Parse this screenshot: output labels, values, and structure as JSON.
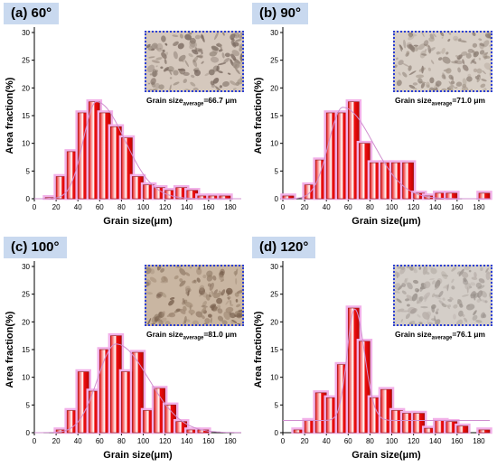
{
  "chart_data": [
    {
      "type": "bar",
      "panel_label": "(a) 60°",
      "xlabel": "Grain size(μm)",
      "ylabel": "Area fraction(%)",
      "xlim": [
        0,
        190
      ],
      "ylim": [
        0,
        30
      ],
      "xticks": [
        0,
        20,
        40,
        60,
        80,
        100,
        120,
        140,
        160,
        180
      ],
      "yticks": [
        0,
        5,
        10,
        15,
        20,
        25,
        30
      ],
      "bin_width": 10,
      "bin_centers": [
        15,
        25,
        35,
        45,
        55,
        65,
        75,
        85,
        95,
        105,
        115,
        125,
        135,
        145,
        155,
        165,
        175
      ],
      "values": [
        0.2,
        4,
        8.5,
        15.5,
        17.5,
        15.5,
        13,
        11,
        4,
        2.5,
        2,
        1.5,
        2,
        1.5,
        0.5,
        0.5,
        0.5
      ],
      "fit_curve": {
        "peak_x": 57,
        "peak_y": 17.5,
        "sigma_left": 12,
        "sigma_right": 26
      },
      "annotation": {
        "prefix": "Grain size",
        "subscript": "average",
        "value": "=66.7 μm"
      },
      "inset_colors": [
        "#d5c8bd",
        "#7a6a60",
        "#9a8c80"
      ]
    },
    {
      "type": "bar",
      "panel_label": "(b) 90°",
      "xlabel": "Grain size(μm)",
      "ylabel": "Area fraction(%)",
      "xlim": [
        0,
        190
      ],
      "ylim": [
        0,
        30
      ],
      "xticks": [
        0,
        20,
        40,
        60,
        80,
        100,
        120,
        140,
        160,
        180
      ],
      "yticks": [
        0,
        5,
        10,
        15,
        20,
        25,
        30
      ],
      "bin_width": 10,
      "bin_centers": [
        5,
        25,
        35,
        45,
        55,
        65,
        75,
        85,
        95,
        105,
        115,
        125,
        135,
        145,
        155,
        185
      ],
      "values": [
        0.5,
        2.5,
        7,
        15.5,
        15.5,
        17.5,
        10,
        6.5,
        6.5,
        6.5,
        6.5,
        1,
        0.5,
        1,
        1,
        1
      ],
      "fit_curve": {
        "peak_x": 55,
        "peak_y": 16.5,
        "sigma_left": 13,
        "sigma_right": 28
      },
      "annotation": {
        "prefix": "Grain size",
        "subscript": "average",
        "value": "=71.0 μm"
      },
      "inset_colors": [
        "#d8cfc6",
        "#8a7c72",
        "#a99c90"
      ]
    },
    {
      "type": "bar",
      "panel_label": "(c) 100°",
      "xlabel": "Grain size(μm)",
      "ylabel": "Area fraction(%)",
      "xlim": [
        0,
        190
      ],
      "ylim": [
        0,
        30
      ],
      "xticks": [
        0,
        20,
        40,
        60,
        80,
        100,
        120,
        140,
        160,
        180
      ],
      "yticks": [
        0,
        5,
        10,
        15,
        20,
        25,
        30
      ],
      "bin_width": 10,
      "bin_centers": [
        25,
        35,
        45,
        55,
        65,
        75,
        85,
        95,
        105,
        115,
        125,
        135,
        145,
        155,
        165
      ],
      "values": [
        0.5,
        4,
        11,
        7.5,
        15,
        17.5,
        11,
        14.5,
        4,
        8,
        5,
        2,
        0.5,
        0.5,
        0
      ],
      "fit_curve": {
        "peak_x": 75,
        "peak_y": 16,
        "sigma_left": 17,
        "sigma_right": 30
      },
      "annotation": {
        "prefix": "Grain size",
        "subscript": "average",
        "value": "=81.0 μm"
      },
      "inset_colors": [
        "#c9b6a2",
        "#7b6350",
        "#a08a75"
      ]
    },
    {
      "type": "bar",
      "panel_label": "(d) 120°",
      "xlabel": "Grain size(μm)",
      "ylabel": "Area fraction(%)",
      "xlim": [
        0,
        190
      ],
      "ylim": [
        0,
        30
      ],
      "xticks": [
        0,
        20,
        40,
        60,
        80,
        100,
        120,
        140,
        160,
        180
      ],
      "yticks": [
        0,
        5,
        10,
        15,
        20,
        25,
        30
      ],
      "bin_width": 10,
      "bin_centers": [
        15,
        25,
        35,
        45,
        55,
        65,
        75,
        85,
        95,
        105,
        115,
        125,
        135,
        145,
        155,
        165,
        185
      ],
      "values": [
        0.5,
        2.2,
        7.2,
        6.3,
        12.3,
        22.5,
        16.5,
        6.3,
        7.8,
        4,
        3.5,
        3.5,
        0.8,
        2.2,
        2,
        1.2,
        0.5
      ],
      "fit_curve": {
        "peak_x": 66,
        "peak_y": 22.3,
        "sigma_left": 7,
        "sigma_right": 9,
        "baseline": 2.2
      },
      "annotation": {
        "prefix": "Grain size",
        "subscript": "average",
        "value": "=76.1 μm"
      },
      "inset_colors": [
        "#d4cec8",
        "#9a928c",
        "#b8b0aa"
      ]
    }
  ],
  "colors": {
    "bar_fill": "#ee1111",
    "bar_highlight": "#ffffff",
    "bar_edge": "#8b1a1a",
    "bar_glow": "#f2b0e8",
    "fit_line": "#d090d0",
    "panel_label_bg": "#c9d9ef",
    "inset_border": "#2b3fd4"
  }
}
